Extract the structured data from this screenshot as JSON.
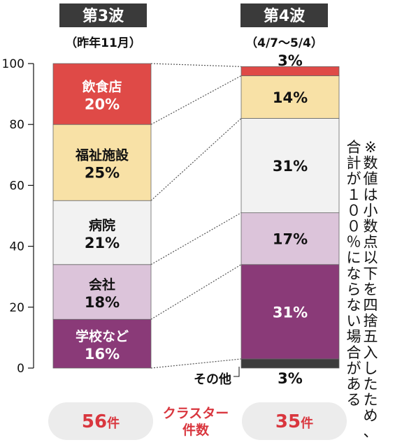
{
  "chart_data": {
    "type": "bar",
    "stacked": true,
    "ylim": [
      0,
      100
    ],
    "yticks": [
      "0",
      "20",
      "40",
      "60",
      "80",
      "100"
    ],
    "bars": [
      {
        "header": "第3波",
        "period": "（昨年11月）",
        "count_value": "56",
        "count_unit": "件",
        "segments": [
          {
            "name": "学校など",
            "value": 16,
            "label": "16%"
          },
          {
            "name": "会社",
            "value": 18,
            "label": "18%"
          },
          {
            "name": "病院",
            "value": 21,
            "label": "21%"
          },
          {
            "name": "福祉施設",
            "value": 25,
            "label": "25%"
          },
          {
            "name": "飲食店",
            "value": 20,
            "label": "20%"
          }
        ]
      },
      {
        "header": "第4波",
        "period": "（4/7〜5/4）",
        "count_value": "35",
        "count_unit": "件",
        "segments": [
          {
            "name": "その他",
            "value": 3,
            "label": "3%"
          },
          {
            "name": "学校など",
            "value": 31,
            "label": "31%"
          },
          {
            "name": "会社",
            "value": 17,
            "label": "17%"
          },
          {
            "name": "病院",
            "value": 31,
            "label": "31%"
          },
          {
            "name": "福祉施設",
            "value": 14,
            "label": "14%"
          },
          {
            "name": "飲食店",
            "value": 3,
            "label": "3%"
          }
        ]
      }
    ],
    "colors": {
      "その他": "#3c3c3c",
      "学校など": "#8a3a78",
      "会社": "#dcc4da",
      "病院": "#f2f2f2",
      "福祉施設": "#f8e1a6",
      "飲食店": "#df4a47"
    },
    "middle_label_line1": "クラスター",
    "middle_label_line2": "件数",
    "note_col1": "※数値は小数点以下を四捨五入したため、",
    "note_col2": "合計が１００％にならない場合がある"
  }
}
